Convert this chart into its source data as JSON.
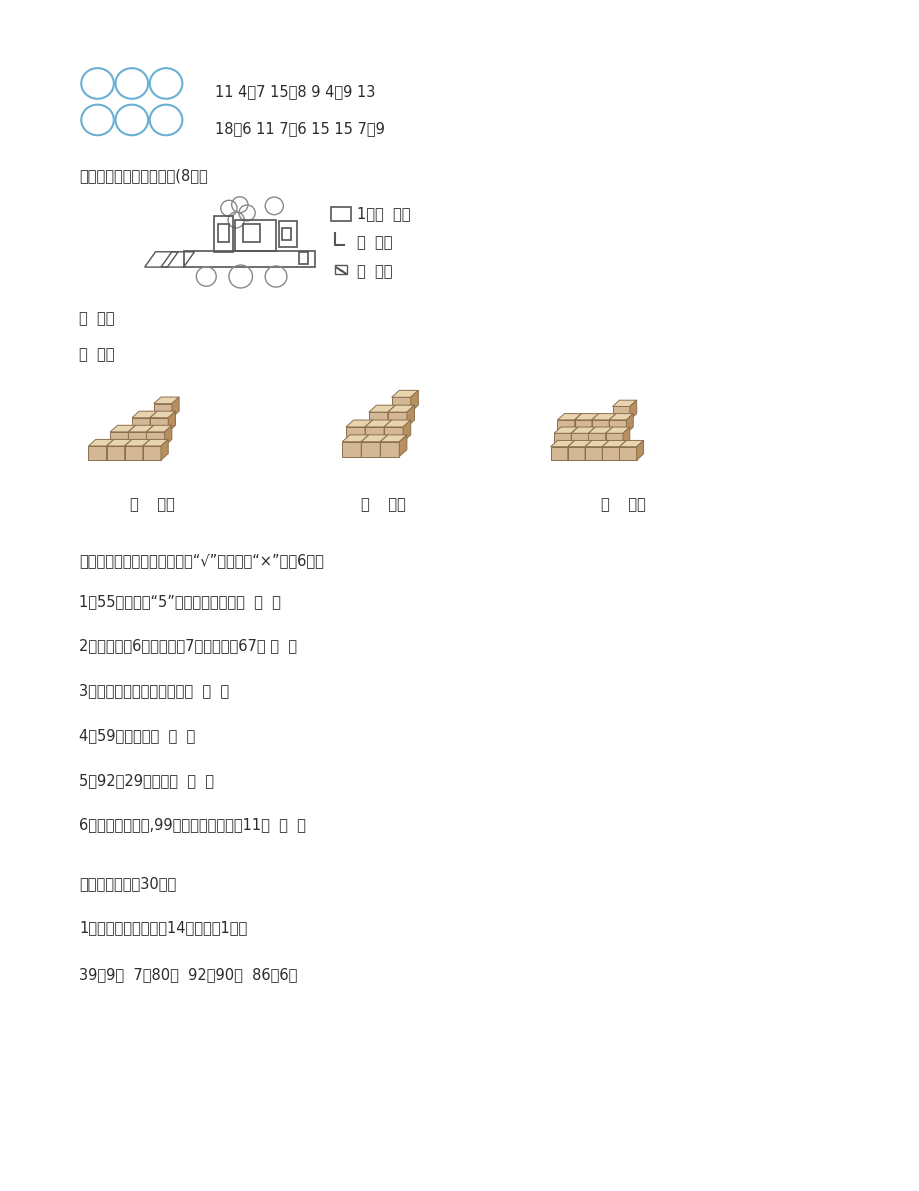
{
  "bg_color": "#ffffff",
  "text_color": "#2c2c2c",
  "page_width": 9.2,
  "page_height": 11.91,
  "dpi": 100,
  "circles_color": "#6ab0d4",
  "shape_color": "#555555",
  "row1_text": "11 4＋7 15－8 9 4＋9 13",
  "row2_text": "18－6 11 7＋6 15 15 7＋9",
  "section2_title": "二、看图数数，填数字。(8分）",
  "labels_1": "1、（  ）个",
  "labels_2": "（  ）个",
  "labels_3": "（  ）个",
  "label_4": "（  ）个",
  "label_5": "（  ）个",
  "section3_title": "三、判断。（对的在括号里大“√”，错的打“×”。公6分）",
  "judge_items": [
    "1、55中的两个“5”表示的意义相同。  （  ）",
    "2、各位上是6，十位上是7，这个数是67。 （  ）",
    "3、读数和写数都从高位起。  （  ）",
    "4、59读作五九。  （  ）",
    "5、92比29多得多。  （  ）",
    "6、最大的两位数,99，最小的两位数是11。  （  ）"
  ],
  "section4_title": "四、计算。（公30分）",
  "section4_sub1": "1、直接写出得数。（14分，每题1分）",
  "section4_eq1": "39－9＝  7＋80＝  92－90＝  86－6＝",
  "cube_labels": [
    "（    ）块",
    "（    ）块",
    "（    ）块"
  ]
}
